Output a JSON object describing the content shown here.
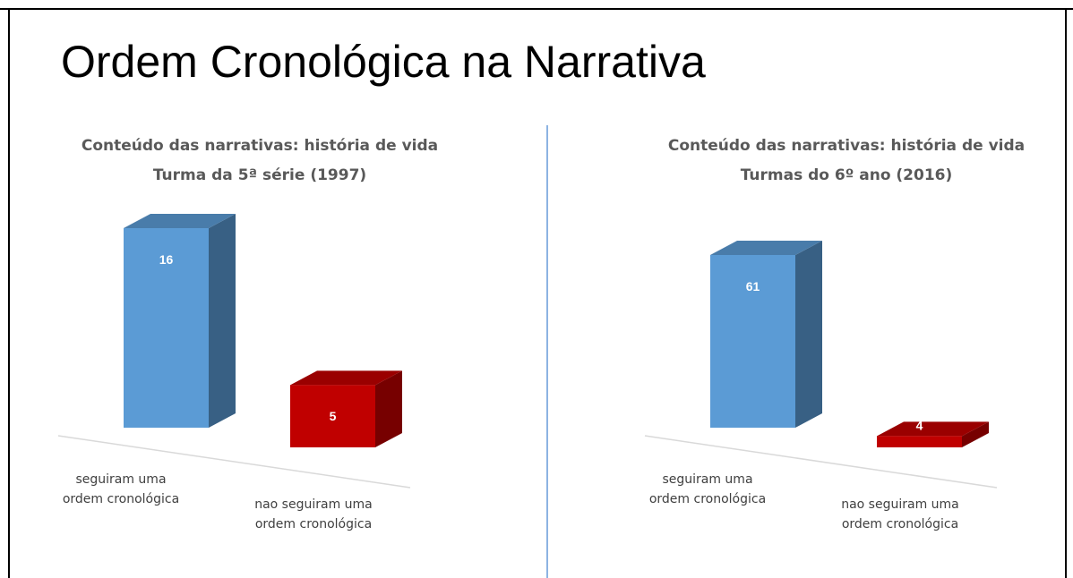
{
  "title": "Ordem Cronológica na Narrativa",
  "chart_data": [
    {
      "type": "bar3d",
      "title": "Conteúdo das narrativas: história de vida",
      "subtitle": "Turma da 5ª série (1997)",
      "categories": [
        "seguiram uma ordem cronológica",
        "nao seguiram uma ordem cronológica"
      ],
      "values": [
        16,
        5
      ],
      "colors": [
        "#5b9bd5",
        "#c00000"
      ]
    },
    {
      "type": "bar3d",
      "title": "Conteúdo das narrativas: história de vida",
      "subtitle": "Turmas do 6º ano (2016)",
      "categories": [
        "seguiram uma ordem cronológica",
        "nao seguiram uma ordem cronológica"
      ],
      "values": [
        61,
        4
      ],
      "colors": [
        "#5b9bd5",
        "#c00000"
      ]
    }
  ]
}
